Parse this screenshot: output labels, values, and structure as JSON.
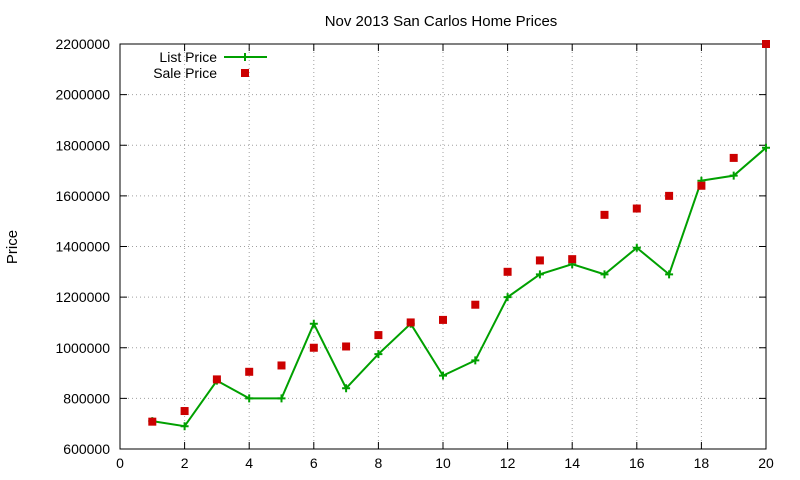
{
  "chart_data": {
    "type": "line",
    "title": "Nov 2013 San Carlos Home Prices",
    "xlabel": "",
    "ylabel": "Price",
    "xlim": [
      0,
      20
    ],
    "ylim": [
      600000,
      2200000
    ],
    "x_ticks": [
      0,
      2,
      4,
      6,
      8,
      10,
      12,
      14,
      16,
      18,
      20
    ],
    "y_ticks": [
      600000,
      800000,
      1000000,
      1200000,
      1400000,
      1600000,
      1800000,
      2000000,
      2200000
    ],
    "grid": true,
    "legend_position": "top-left",
    "series": [
      {
        "name": "List Price",
        "style": "line-with-plus-markers",
        "color": "#00a000",
        "x": [
          1,
          2,
          3,
          4,
          5,
          6,
          7,
          8,
          9,
          10,
          11,
          12,
          13,
          14,
          15,
          16,
          17,
          18,
          19,
          20
        ],
        "y": [
          710000,
          690000,
          870000,
          800000,
          800000,
          1095000,
          840000,
          975000,
          1095000,
          890000,
          950000,
          1200000,
          1290000,
          1330000,
          1290000,
          1395000,
          1290000,
          1660000,
          1680000,
          1790000
        ]
      },
      {
        "name": "Sale Price",
        "style": "square-markers",
        "color": "#cc0000",
        "x": [
          1,
          2,
          3,
          4,
          5,
          6,
          7,
          8,
          9,
          10,
          11,
          12,
          13,
          14,
          15,
          16,
          17,
          18,
          19,
          20
        ],
        "y": [
          708000,
          750000,
          875000,
          905000,
          930000,
          1000000,
          1005000,
          1050000,
          1100000,
          1110000,
          1170000,
          1300000,
          1345000,
          1350000,
          1525000,
          1550000,
          1600000,
          1640000,
          1750000,
          2200000
        ]
      }
    ]
  }
}
